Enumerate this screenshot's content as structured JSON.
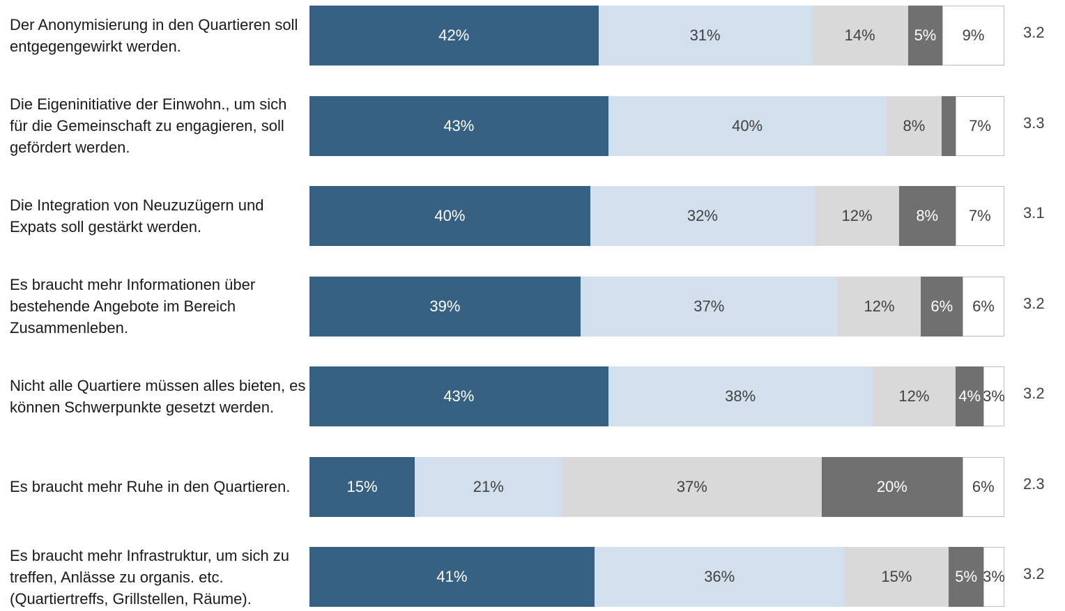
{
  "chart_data": {
    "type": "stacked_bar_100",
    "categories": [
      "Der Anonymisierung in den Quartieren soll entgegengewirkt werden.",
      "Die Eigeninitiative der Einwohn., um sich für die Gemeinschaft zu engagieren, soll gefördert werden.",
      "Die Integration von Neuzuzügern und Expats soll gestärkt werden.",
      "Es braucht mehr Informationen über bestehende Angebote im Bereich Zusammenleben.",
      "Nicht alle Quartiere müssen alles bieten, es können Schwerpunkte gesetzt werden.",
      "Es braucht mehr Ruhe in den Quartieren.",
      "Es braucht mehr Infrastruktur, um sich zu treffen, Anlässe zu organis. etc. (Quartiertreffs, Grillstellen, Räume)."
    ],
    "series": [
      {
        "color": "#376183",
        "text_color": "#ffffff",
        "values": [
          42,
          43,
          40,
          39,
          43,
          15,
          41
        ],
        "value_labels": [
          "42%",
          "43%",
          "40%",
          "39%",
          "43%",
          "15%",
          "41%"
        ]
      },
      {
        "color": "#d2e0ee",
        "text_color": "#404040",
        "values": [
          31,
          40,
          32,
          37,
          38,
          21,
          36
        ],
        "value_labels": [
          "31%",
          "40%",
          "32%",
          "37%",
          "38%",
          "21%",
          "36%"
        ]
      },
      {
        "color": "#d9d9d9",
        "text_color": "#404040",
        "values": [
          14,
          8,
          12,
          12,
          12,
          37,
          15
        ],
        "value_labels": [
          "14%",
          "8%",
          "12%",
          "12%",
          "12%",
          "37%",
          "15%"
        ]
      },
      {
        "color": "#707070",
        "text_color": "#ffffff",
        "values": [
          5,
          2,
          8,
          6,
          4,
          20,
          5
        ],
        "value_labels": [
          "5%",
          null,
          "8%",
          "6%",
          "4%",
          "20%",
          "5%"
        ]
      },
      {
        "color": "#ffffff",
        "text_color": "#404040",
        "values": [
          9,
          7,
          7,
          6,
          3,
          6,
          3
        ],
        "value_labels": [
          "9%",
          "7%",
          "7%",
          "6%",
          "3%",
          "6%",
          "3%"
        ]
      }
    ],
    "scores": [
      3.2,
      3.3,
      3.1,
      3.2,
      3.2,
      2.3,
      3.2
    ]
  }
}
